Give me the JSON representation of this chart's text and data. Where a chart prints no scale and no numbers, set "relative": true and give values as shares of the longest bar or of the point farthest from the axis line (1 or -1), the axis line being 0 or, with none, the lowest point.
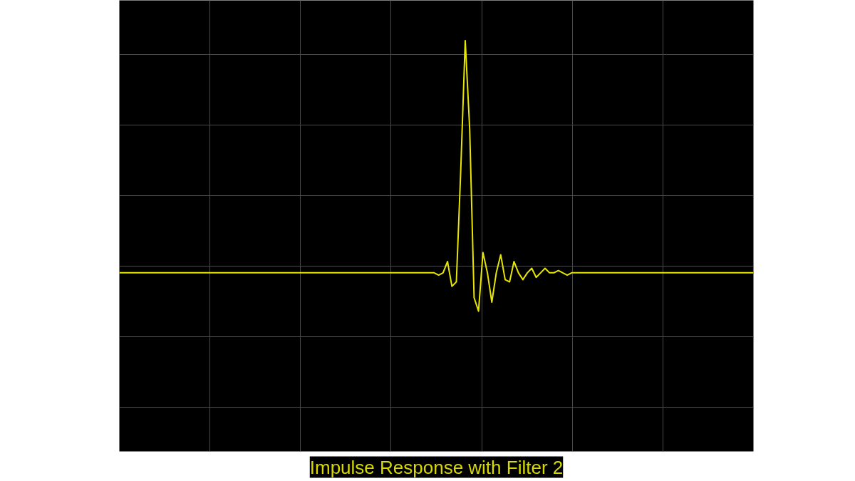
{
  "chart_data": {
    "type": "line",
    "title": "Impulse Response with Filter 2",
    "relative": true,
    "grid": true,
    "color": "#e6e600",
    "categories": [
      null,
      null,
      null,
      null,
      null,
      null,
      null,
      null,
      null,
      null,
      null,
      null,
      null,
      null,
      null,
      null,
      null,
      null,
      null,
      null,
      null,
      null,
      null,
      null,
      null,
      null,
      null,
      null,
      null,
      null,
      null,
      null,
      null,
      null,
      null,
      null,
      null,
      null,
      null,
      null,
      null,
      null,
      null,
      null,
      null,
      null,
      null,
      null,
      null,
      null,
      null,
      null,
      null,
      null,
      null,
      null,
      null,
      null,
      null,
      null,
      null,
      null,
      null,
      null,
      null,
      null,
      null,
      null,
      null,
      null,
      null,
      null,
      null,
      null,
      null,
      null,
      null,
      null,
      null,
      null,
      null,
      null,
      null,
      null,
      null,
      null,
      null,
      null,
      null,
      null,
      null,
      null,
      null,
      null,
      null,
      null,
      null,
      null,
      null,
      null,
      null,
      null,
      null,
      null,
      null,
      null,
      null,
      null,
      null,
      null,
      null,
      null,
      null,
      null,
      null,
      null,
      null,
      null,
      null,
      null,
      null,
      null,
      null,
      null,
      null,
      null,
      null,
      null,
      null,
      null,
      null,
      null,
      null,
      null,
      null,
      null,
      null,
      null,
      null,
      null,
      null,
      null,
      null,
      null
    ],
    "values": [
      -0.03,
      -0.03,
      -0.03,
      -0.03,
      -0.03,
      -0.03,
      -0.03,
      -0.03,
      -0.03,
      -0.03,
      -0.03,
      -0.03,
      -0.03,
      -0.03,
      -0.03,
      -0.03,
      -0.03,
      -0.03,
      -0.03,
      -0.03,
      -0.03,
      -0.03,
      -0.03,
      -0.03,
      -0.03,
      -0.03,
      -0.03,
      -0.03,
      -0.03,
      -0.03,
      -0.03,
      -0.03,
      -0.03,
      -0.03,
      -0.03,
      -0.03,
      -0.03,
      -0.03,
      -0.03,
      -0.03,
      -0.03,
      -0.03,
      -0.03,
      -0.03,
      -0.03,
      -0.03,
      -0.03,
      -0.03,
      -0.03,
      -0.03,
      -0.03,
      -0.03,
      -0.03,
      -0.03,
      -0.03,
      -0.03,
      -0.03,
      -0.03,
      -0.03,
      -0.03,
      -0.03,
      -0.03,
      -0.03,
      -0.03,
      -0.03,
      -0.03,
      -0.03,
      -0.03,
      -0.03,
      -0.03,
      -0.03,
      -0.03,
      -0.04,
      -0.03,
      0.02,
      -0.09,
      -0.07,
      0.43,
      1.0,
      0.61,
      -0.14,
      -0.2,
      0.06,
      -0.03,
      -0.16,
      -0.03,
      0.05,
      -0.06,
      -0.07,
      0.02,
      -0.03,
      -0.06,
      -0.03,
      -0.01,
      -0.05,
      -0.03,
      -0.01,
      -0.03,
      -0.03,
      -0.02,
      -0.03,
      -0.04,
      -0.03,
      -0.03,
      -0.03,
      -0.03,
      -0.03,
      -0.03,
      -0.03,
      -0.03,
      -0.03,
      -0.03,
      -0.03,
      -0.03,
      -0.03,
      -0.03,
      -0.03,
      -0.03,
      -0.03,
      -0.03,
      -0.03,
      -0.03,
      -0.03,
      -0.03,
      -0.03,
      -0.03,
      -0.03,
      -0.03,
      -0.03,
      -0.03,
      -0.03,
      -0.03,
      -0.03,
      -0.03,
      -0.03,
      -0.03,
      -0.03,
      -0.03,
      -0.03,
      -0.03,
      -0.03,
      -0.03,
      -0.03,
      -0.03
    ]
  }
}
